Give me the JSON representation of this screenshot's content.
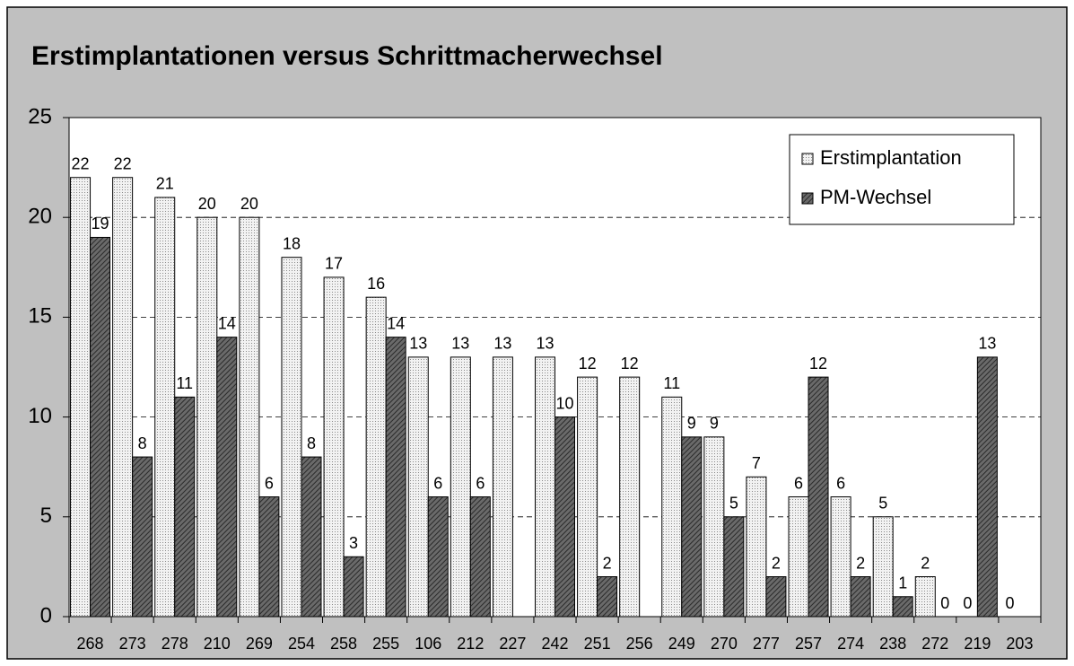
{
  "chart_data": {
    "type": "bar",
    "title": "Erstimplantationen versus Schrittmacherwechsel",
    "categories": [
      "268",
      "273",
      "278",
      "210",
      "269",
      "254",
      "258",
      "255",
      "106",
      "212",
      "227",
      "242",
      "251",
      "256",
      "249",
      "270",
      "277",
      "257",
      "274",
      "238",
      "272",
      "219",
      "203"
    ],
    "series": [
      {
        "name": "Erstimplantation",
        "color": "#e6e6e6",
        "values": [
          22,
          22,
          21,
          20,
          20,
          18,
          17,
          16,
          13,
          13,
          13,
          13,
          12,
          12,
          11,
          9,
          7,
          6,
          6,
          5,
          2,
          0,
          0
        ]
      },
      {
        "name": "PM-Wechsel",
        "color": "#555555",
        "values": [
          19,
          8,
          11,
          14,
          6,
          8,
          3,
          14,
          6,
          6,
          null,
          10,
          2,
          null,
          9,
          5,
          2,
          12,
          2,
          1,
          0,
          13,
          null
        ]
      }
    ],
    "ylim": [
      0,
      25
    ],
    "yticks": [
      0,
      5,
      10,
      15,
      20,
      25
    ],
    "grid": true,
    "legend": "upper right"
  }
}
